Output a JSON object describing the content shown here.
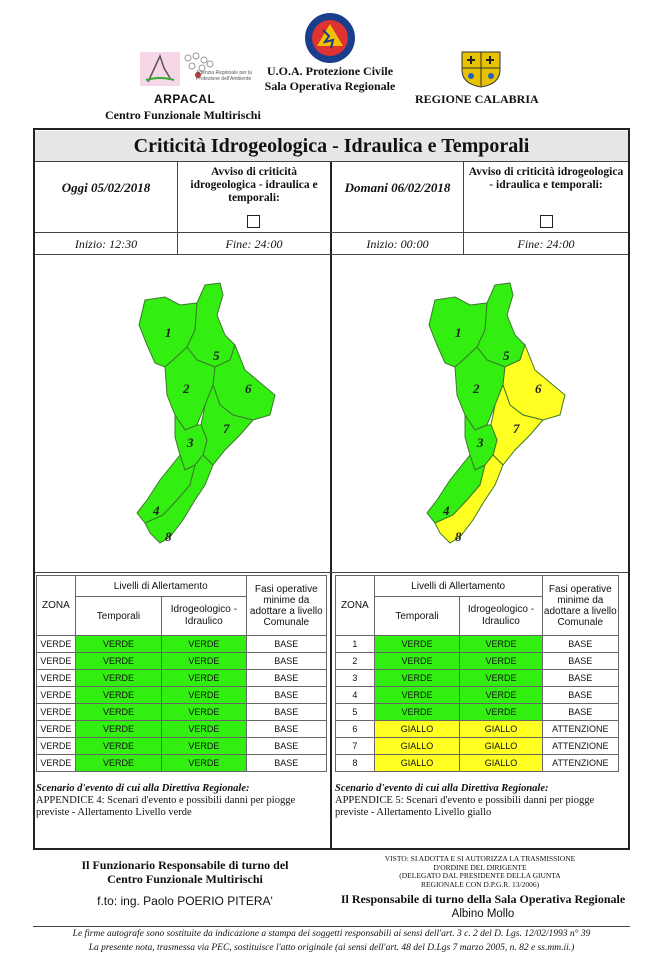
{
  "header": {
    "arpacal": "ARPACAL",
    "centro": "Centro Funzionale Multirischi",
    "uoa": "U.O.A. Protezione Civile",
    "sala": "Sala Operativa Regionale",
    "regione": "REGIONE CALABRIA",
    "pc_logo_text": "PROTEZIONE CIVILE",
    "arpacal_sub": "Agenzia Regionale per la Protezione dell'Ambiente"
  },
  "title": "Criticità Idrogeologica - Idraulica e Temporali",
  "avviso_label": "Avviso di criticità idrogeologica - idraulica e temporali:",
  "today": {
    "date": "Oggi 05/02/2018",
    "inizio": "Inizio: 12:30",
    "fine": "Fine: 24:00",
    "zone_colors": [
      "VERDE",
      "VERDE",
      "VERDE",
      "VERDE",
      "VERDE",
      "VERDE",
      "VERDE",
      "VERDE"
    ]
  },
  "tomorrow": {
    "date": "Domani 06/02/2018",
    "inizio": "Inizio: 00:00",
    "fine": "Fine: 24:00",
    "zone_colors": [
      "VERDE",
      "VERDE",
      "VERDE",
      "VERDE",
      "VERDE",
      "GIALLO",
      "GIALLO",
      "GIALLO"
    ]
  },
  "table_headers": {
    "zona": "ZONA",
    "livelli": "Livelli di Allertamento",
    "temporali": "Temporali",
    "idro": "Idrogeologico - Idraulico",
    "fasi": "Fasi operative minime da adottare a livello Comunale"
  },
  "left_rows": [
    {
      "zona": "VERDE",
      "temp": "VERDE",
      "idro": "VERDE",
      "fase": "BASE"
    },
    {
      "zona": "VERDE",
      "temp": "VERDE",
      "idro": "VERDE",
      "fase": "BASE"
    },
    {
      "zona": "VERDE",
      "temp": "VERDE",
      "idro": "VERDE",
      "fase": "BASE"
    },
    {
      "zona": "VERDE",
      "temp": "VERDE",
      "idro": "VERDE",
      "fase": "BASE"
    },
    {
      "zona": "VERDE",
      "temp": "VERDE",
      "idro": "VERDE",
      "fase": "BASE"
    },
    {
      "zona": "VERDE",
      "temp": "VERDE",
      "idro": "VERDE",
      "fase": "BASE"
    },
    {
      "zona": "VERDE",
      "temp": "VERDE",
      "idro": "VERDE",
      "fase": "BASE"
    },
    {
      "zona": "VERDE",
      "temp": "VERDE",
      "idro": "VERDE",
      "fase": "BASE"
    }
  ],
  "right_rows": [
    {
      "zona": "1",
      "temp": "VERDE",
      "idro": "VERDE",
      "fase": "BASE"
    },
    {
      "zona": "2",
      "temp": "VERDE",
      "idro": "VERDE",
      "fase": "BASE"
    },
    {
      "zona": "3",
      "temp": "VERDE",
      "idro": "VERDE",
      "fase": "BASE"
    },
    {
      "zona": "4",
      "temp": "VERDE",
      "idro": "VERDE",
      "fase": "BASE"
    },
    {
      "zona": "5",
      "temp": "VERDE",
      "idro": "VERDE",
      "fase": "BASE"
    },
    {
      "zona": "6",
      "temp": "GIALLO",
      "idro": "GIALLO",
      "fase": "ATTENZIONE"
    },
    {
      "zona": "7",
      "temp": "GIALLO",
      "idro": "GIALLO",
      "fase": "ATTENZIONE"
    },
    {
      "zona": "8",
      "temp": "GIALLO",
      "idro": "GIALLO",
      "fase": "ATTENZIONE"
    }
  ],
  "scenario": {
    "label": "Scenario d'evento di cui alla Direttiva Regionale:",
    "left_text": "APPENDICE 4: Scenari d'evento e possibili danni per piogge previste - Allertamento Livello verde",
    "right_text": "APPENDICE 5: Scenari d'evento e possibili danni per piogge previste - Allertamento Livello giallo"
  },
  "signatures": {
    "left_title_1": "Il Funzionario Responsabile di turno del",
    "left_title_2": "Centro Funzionale Multirischi",
    "left_name": "f.to: ing. Paolo POERIO PITERA'",
    "visto_1": "VISTO: SI ADOTTA E SI AUTORIZZA LA TRASMISSIONE",
    "visto_2": "D'ORDINE DEL DIRIGENTE",
    "visto_3": "(DELEGATO DAL PRESIDENTE DELLA GIUNTA",
    "visto_4": "REGIONALE CON D.P.G.R. 13/2006)",
    "right_title": "Il Responsabile di turno della Sala Operativa Regionale",
    "right_name": "Albino Mollo"
  },
  "footer": {
    "line1": "Le firme autografe sono sostituite da indicazione a stampa dei soggetti responsabili ai sensi dell'art. 3 c. 2 del D. Lgs. 12/02/1993 n° 39",
    "line2": "La presente nota, trasmessa via PEC, sostituisce l'atto originale (ai sensi dell'art. 48 del D.Lgs 7 marzo 2005, n. 82 e ss.mm.ii.)"
  },
  "zone_numbers": [
    "1",
    "2",
    "3",
    "4",
    "5",
    "6",
    "7",
    "8"
  ],
  "colors": {
    "verde": "#33ee11",
    "giallo": "#ffff22",
    "outline": "#3a7a2a"
  }
}
